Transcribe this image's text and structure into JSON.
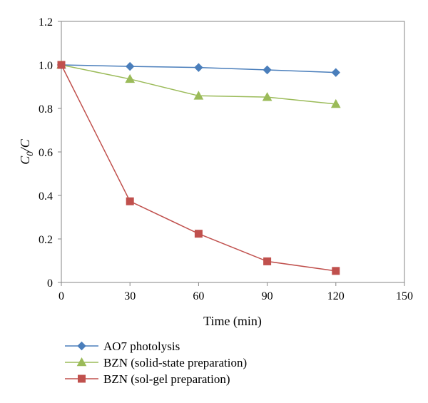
{
  "chart_data": {
    "type": "line",
    "title": "",
    "xlabel": "Time (min)",
    "ylabel_main": "C",
    "ylabel_sub": "0",
    "ylabel_tail": "/C",
    "xlim": [
      0,
      150
    ],
    "ylim": [
      0,
      1.2
    ],
    "xticks": [
      0,
      30,
      60,
      90,
      120,
      150
    ],
    "yticks": [
      0,
      0.2,
      0.4,
      0.6,
      0.8,
      1.0,
      1.2
    ],
    "xtick_labels": [
      "0",
      "30",
      "60",
      "90",
      "120",
      "150"
    ],
    "ytick_labels": [
      "0",
      "0.2",
      "0.4",
      "0.6",
      "0.8",
      "1.0",
      "1.2"
    ],
    "grid": false,
    "legend_position": "bottom-left",
    "series": [
      {
        "name": "AO7 photolysis",
        "marker": "diamond",
        "color": "#4a7ebb",
        "x": [
          0,
          30,
          60,
          90,
          120
        ],
        "y": [
          1.0,
          0.993,
          0.988,
          0.977,
          0.965
        ]
      },
      {
        "name": "BZN (solid-state preparation)",
        "marker": "triangle",
        "color": "#9bbb59",
        "x": [
          0,
          30,
          60,
          90,
          120
        ],
        "y": [
          1.0,
          0.935,
          0.858,
          0.852,
          0.82
        ]
      },
      {
        "name": "BZN (sol-gel preparation)",
        "marker": "square",
        "color": "#c0504d",
        "x": [
          0,
          30,
          60,
          90,
          120
        ],
        "y": [
          1.0,
          0.373,
          0.224,
          0.097,
          0.053
        ]
      }
    ]
  }
}
